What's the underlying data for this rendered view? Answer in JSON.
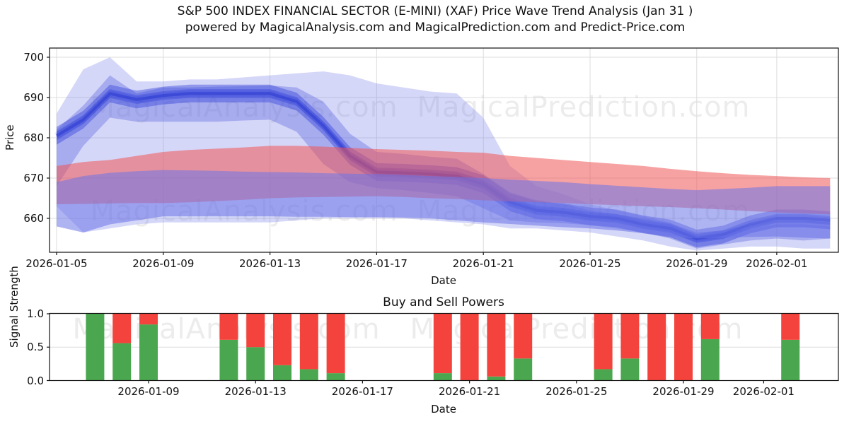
{
  "title": {
    "line1": "S&P 500 INDEX FINANCIAL SECTOR (E-MINI) (XAF) Price Wave Trend Analysis (Jan 31 )",
    "line2": "powered by MagicalAnalysis.com and MagicalPrediction.com and Predict-Price.com"
  },
  "watermark": {
    "left_text": "MagicalAnalysis.com",
    "right_text": "MagicalPrediction.com"
  },
  "colors": {
    "wave_outer": "#7b84e8",
    "wave_mid": "#5b66e0",
    "wave_core": "#3240da",
    "wave_core_line": "#2433d0",
    "red_band": "#f05555",
    "violet_band": "#6b74e8",
    "buy_green": "#4aa74f",
    "sell_red": "#f4433c",
    "gridline": "#dcdcdc",
    "spine": "#111111"
  },
  "price_chart": {
    "ylabel": "Price",
    "xlabel": "Date",
    "y_ticks": [
      {
        "label": "700",
        "value": 700
      },
      {
        "label": "690",
        "value": 690
      },
      {
        "label": "680",
        "value": 680
      },
      {
        "label": "670",
        "value": 670
      },
      {
        "label": "660",
        "value": 660
      }
    ],
    "x_ticks": [
      {
        "label": "2026-01-05",
        "date": "2026-01-05"
      },
      {
        "label": "2026-01-09",
        "date": "2026-01-09"
      },
      {
        "label": "2026-01-13",
        "date": "2026-01-13"
      },
      {
        "label": "2026-01-17",
        "date": "2026-01-17"
      },
      {
        "label": "2026-01-21",
        "date": "2026-01-21"
      },
      {
        "label": "2026-01-25",
        "date": "2026-01-25"
      },
      {
        "label": "2026-01-29",
        "date": "2026-01-29"
      },
      {
        "label": "2026-02-01",
        "date": "2026-02-01"
      }
    ]
  },
  "power_chart": {
    "title": "Buy and Sell Powers",
    "ylabel": "Signal Strength",
    "xlabel": "Date",
    "y_ticks": [
      {
        "label": "1.0",
        "value": 1.0
      },
      {
        "label": "0.5",
        "value": 0.5
      },
      {
        "label": "0.0",
        "value": 0.0
      }
    ],
    "x_ticks": [
      {
        "label": "2026-01-09",
        "date": "2026-01-09"
      },
      {
        "label": "2026-01-13",
        "date": "2026-01-13"
      },
      {
        "label": "2026-01-17",
        "date": "2026-01-17"
      },
      {
        "label": "2026-01-21",
        "date": "2026-01-21"
      },
      {
        "label": "2026-01-25",
        "date": "2026-01-25"
      },
      {
        "label": "2026-01-29",
        "date": "2026-01-29"
      },
      {
        "label": "2026-02-01",
        "date": "2026-02-01"
      }
    ]
  },
  "chart_data": [
    {
      "type": "area",
      "name": "price-wave-trend",
      "ylabel": "Price",
      "xlabel": "Date",
      "ylim": [
        651.6,
        702.3
      ],
      "grid": "both",
      "dates": [
        "2026-01-05",
        "2026-01-06",
        "2026-01-07",
        "2026-01-08",
        "2026-01-09",
        "2026-01-10",
        "2026-01-11",
        "2026-01-12",
        "2026-01-13",
        "2026-01-14",
        "2026-01-15",
        "2026-01-16",
        "2026-01-17",
        "2026-01-18",
        "2026-01-19",
        "2026-01-20",
        "2026-01-21",
        "2026-01-22",
        "2026-01-23",
        "2026-01-24",
        "2026-01-25",
        "2026-01-26",
        "2026-01-27",
        "2026-01-28",
        "2026-01-29",
        "2026-01-30",
        "2026-01-31",
        "2026-02-01",
        "2026-02-02",
        "2026-02-03"
      ],
      "trend": [
        680.5,
        684.5,
        691,
        689.5,
        690.5,
        691,
        691,
        691,
        691,
        689,
        683,
        675.5,
        671.5,
        671.3,
        671,
        670.5,
        668.5,
        664,
        662,
        661.5,
        660.5,
        660,
        658.5,
        657.5,
        655,
        656,
        658.5,
        660,
        660,
        659.5
      ],
      "band_outer": {
        "upper": [
          686,
          697,
          700,
          694,
          694,
          694.5,
          694.5,
          695,
          695.5,
          696,
          696.5,
          695.5,
          693.5,
          692.5,
          691.5,
          691,
          685,
          673,
          668,
          666,
          663.5,
          662,
          660.5,
          659,
          655.5,
          656.5,
          657.5,
          658.5,
          658.5,
          658
        ],
        "lower": [
          663,
          656.5,
          657.5,
          658.5,
          659,
          659,
          659,
          659,
          659,
          659.5,
          660,
          660,
          660,
          660,
          659.5,
          659,
          658.5,
          657.5,
          657.5,
          657,
          656.5,
          655.5,
          654.5,
          653,
          652,
          652.5,
          653,
          653,
          652.5,
          652.5
        ]
      },
      "band_mid": {
        "upper": [
          682,
          688,
          695.5,
          691,
          692.5,
          692.5,
          692.7,
          692.8,
          693,
          692.5,
          689,
          681,
          676.5,
          676,
          675.3,
          674.8,
          671,
          666.5,
          664.5,
          663.5,
          662,
          661,
          660,
          658.8,
          656.5,
          657,
          658.5,
          659.5,
          659.5,
          659
        ],
        "lower": [
          668,
          678,
          685,
          684,
          684,
          684,
          684,
          684.3,
          684.5,
          681.5,
          673.5,
          669,
          667.5,
          667,
          666.3,
          665.5,
          662.5,
          659.5,
          659,
          658.8,
          658.3,
          657.5,
          656.5,
          655,
          652.5,
          653.5,
          654.5,
          655,
          654.5,
          655
        ]
      },
      "red_band": {
        "upper": [
          673,
          674,
          674.5,
          675.5,
          676.5,
          677,
          677.3,
          677.6,
          678,
          678,
          677.8,
          677.5,
          677.2,
          677,
          676.8,
          676.5,
          676.3,
          675.5,
          675,
          674.5,
          674,
          673.5,
          673,
          672.3,
          671.7,
          671.2,
          670.8,
          670.5,
          670.2,
          670
        ],
        "lower": [
          663.5,
          663.6,
          663.7,
          663.8,
          663.8,
          664,
          664.3,
          664.6,
          665,
          665.2,
          665.3,
          665.4,
          665.5,
          665.3,
          665,
          664.8,
          664.5,
          664.2,
          664,
          663.8,
          663.5,
          663.3,
          663,
          662.8,
          662.5,
          662.2,
          661.8,
          661.5,
          661.2,
          661
        ]
      },
      "violet_band": {
        "upper": [
          669,
          670.5,
          671.3,
          671.7,
          672,
          671.9,
          671.8,
          671.6,
          671.5,
          671.4,
          671.2,
          671.1,
          671,
          670.8,
          670.5,
          670.3,
          670,
          669.6,
          669.3,
          669,
          668.5,
          668.1,
          667.7,
          667.3,
          667,
          667.3,
          667.6,
          668,
          668,
          668
        ],
        "lower": [
          658,
          656.5,
          658.5,
          659.5,
          660.5,
          660.5,
          660.5,
          660.5,
          660.5,
          660.4,
          660.4,
          660.3,
          660.3,
          660.2,
          660,
          659.5,
          659,
          658.6,
          658.2,
          657.8,
          657.5,
          657,
          656.3,
          655.6,
          655,
          655.2,
          655.4,
          655.5,
          655.2,
          655
        ]
      }
    },
    {
      "type": "bar",
      "name": "buy-sell-powers",
      "title": "Buy and Sell Powers",
      "ylabel": "Signal Strength",
      "xlabel": "Date",
      "ylim": [
        0,
        1.0
      ],
      "grid": "y",
      "stacked": true,
      "dates": [
        "2026-01-07",
        "2026-01-08",
        "2026-01-09",
        "2026-01-12",
        "2026-01-13",
        "2026-01-14",
        "2026-01-15",
        "2026-01-16",
        "2026-01-20",
        "2026-01-21",
        "2026-01-22",
        "2026-01-23",
        "2026-01-26",
        "2026-01-27",
        "2026-01-28",
        "2026-01-29",
        "2026-01-30",
        "2026-02-02"
      ],
      "series": [
        {
          "name": "buy",
          "color": "#4aa74f",
          "values": [
            1.0,
            0.56,
            0.84,
            0.61,
            0.5,
            0.23,
            0.17,
            0.11,
            0.11,
            0.0,
            0.06,
            0.33,
            0.17,
            0.33,
            0.0,
            0.0,
            0.62,
            0.61
          ]
        },
        {
          "name": "sell",
          "color": "#f4433c",
          "values": [
            0.0,
            0.44,
            0.16,
            0.39,
            0.5,
            0.77,
            0.83,
            0.89,
            0.89,
            1.0,
            0.94,
            0.67,
            0.83,
            0.67,
            1.0,
            1.0,
            0.38,
            0.39
          ]
        }
      ]
    }
  ]
}
